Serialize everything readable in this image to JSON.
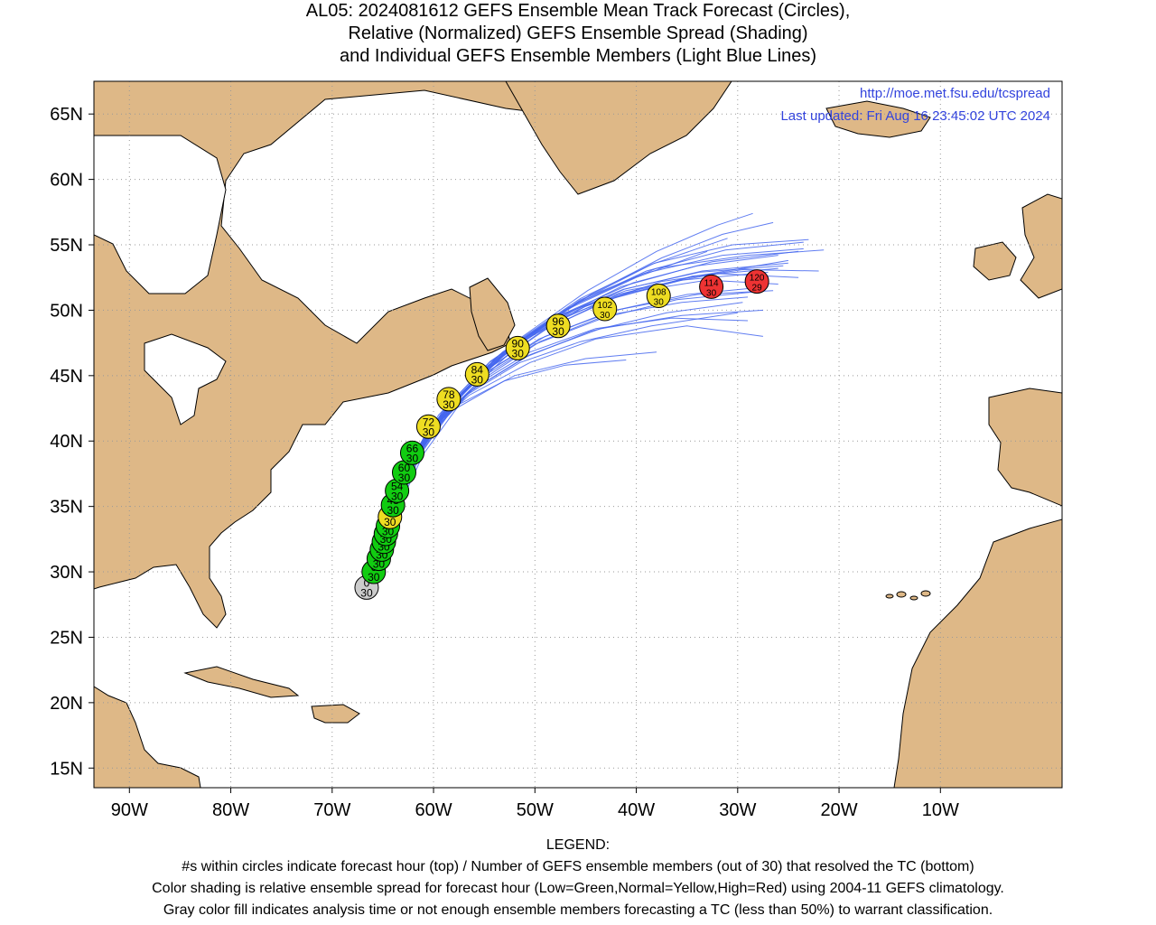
{
  "title": {
    "line1": "AL05: 2024081612 GEFS Ensemble Mean Track Forecast (Circles),",
    "line2": "Relative (Normalized) GEFS Ensemble Spread (Shading)",
    "line3": "and Individual GEFS Ensemble Members (Light Blue Lines)"
  },
  "header": {
    "url": "http://moe.met.fsu.edu/tcspread",
    "updated": "Last updated: Fri Aug 16 23:45:02 UTC 2024"
  },
  "map": {
    "lon_range": [
      -93.5,
      2.0
    ],
    "lat_range": [
      13.5,
      67.5
    ],
    "x_ticks": [
      {
        "lon": -90,
        "label": "90W"
      },
      {
        "lon": -80,
        "label": "80W"
      },
      {
        "lon": -70,
        "label": "70W"
      },
      {
        "lon": -60,
        "label": "60W"
      },
      {
        "lon": -50,
        "label": "50W"
      },
      {
        "lon": -40,
        "label": "40W"
      },
      {
        "lon": -30,
        "label": "30W"
      },
      {
        "lon": -20,
        "label": "20W"
      },
      {
        "lon": -10,
        "label": "10W"
      }
    ],
    "y_ticks": [
      {
        "lat": 15,
        "label": "15N"
      },
      {
        "lat": 20,
        "label": "20N"
      },
      {
        "lat": 25,
        "label": "25N"
      },
      {
        "lat": 30,
        "label": "30N"
      },
      {
        "lat": 35,
        "label": "35N"
      },
      {
        "lat": 40,
        "label": "40N"
      },
      {
        "lat": 45,
        "label": "45N"
      },
      {
        "lat": 50,
        "label": "50N"
      },
      {
        "lat": 55,
        "label": "55N"
      },
      {
        "lat": 60,
        "label": "60N"
      },
      {
        "lat": 65,
        "label": "65N"
      }
    ],
    "colors": {
      "land": "#deb887",
      "ocean": "#ffffff",
      "member_line": "#4466ee",
      "low": "#11cc11",
      "normal": "#eedd22",
      "high": "#ee3333",
      "analysis": "#cccccc"
    },
    "track_points": [
      {
        "hour": "0",
        "members": "30",
        "lon": -66.6,
        "lat": 28.8,
        "spread": "analysis"
      },
      {
        "hour": "6",
        "members": "30",
        "lon": -65.9,
        "lat": 30.0,
        "spread": "low"
      },
      {
        "hour": "12",
        "members": "30",
        "lon": -65.4,
        "lat": 31.0,
        "spread": "low"
      },
      {
        "hour": "18",
        "members": "30",
        "lon": -65.1,
        "lat": 31.7,
        "spread": "low"
      },
      {
        "hour": "24",
        "members": "30",
        "lon": -64.9,
        "lat": 32.3,
        "spread": "low"
      },
      {
        "hour": "30",
        "members": "30",
        "lon": -64.7,
        "lat": 32.9,
        "spread": "low"
      },
      {
        "hour": "36",
        "members": "30",
        "lon": -64.5,
        "lat": 33.5,
        "spread": "low"
      },
      {
        "hour": "42",
        "members": "30",
        "lon": -64.3,
        "lat": 34.2,
        "spread": "normal"
      },
      {
        "hour": "48",
        "members": "30",
        "lon": -64.0,
        "lat": 35.1,
        "spread": "low"
      },
      {
        "hour": "54",
        "members": "30",
        "lon": -63.6,
        "lat": 36.2,
        "spread": "low"
      },
      {
        "hour": "60",
        "members": "30",
        "lon": -62.9,
        "lat": 37.6,
        "spread": "low"
      },
      {
        "hour": "66",
        "members": "30",
        "lon": -62.1,
        "lat": 39.1,
        "spread": "low"
      },
      {
        "hour": "72",
        "members": "30",
        "lon": -60.5,
        "lat": 41.1,
        "spread": "normal"
      },
      {
        "hour": "78",
        "members": "30",
        "lon": -58.5,
        "lat": 43.2,
        "spread": "normal"
      },
      {
        "hour": "84",
        "members": "30",
        "lon": -55.7,
        "lat": 45.1,
        "spread": "normal"
      },
      {
        "hour": "90",
        "members": "30",
        "lon": -51.7,
        "lat": 47.1,
        "spread": "normal"
      },
      {
        "hour": "96",
        "members": "30",
        "lon": -47.7,
        "lat": 48.8,
        "spread": "normal"
      },
      {
        "hour": "102",
        "members": "30",
        "lon": -43.1,
        "lat": 50.1,
        "spread": "normal"
      },
      {
        "hour": "108",
        "members": "30",
        "lon": -37.8,
        "lat": 51.1,
        "spread": "normal"
      },
      {
        "hour": "114",
        "members": "30",
        "lon": -32.6,
        "lat": 51.8,
        "spread": "high"
      },
      {
        "hour": "120",
        "members": "29",
        "lon": -28.1,
        "lat": 52.2,
        "spread": "high"
      }
    ],
    "member_tracks": [
      [
        [
          -66.6,
          28.8
        ],
        [
          -64.5,
          33.5
        ],
        [
          -62.5,
          38.0
        ],
        [
          -59.5,
          42.0
        ],
        [
          -54.5,
          46.0
        ],
        [
          -48.0,
          49.5
        ],
        [
          -41.0,
          51.5
        ],
        [
          -32.0,
          52.8
        ],
        [
          -24.0,
          52.5
        ]
      ],
      [
        [
          -66.6,
          28.8
        ],
        [
          -64.2,
          33.8
        ],
        [
          -61.8,
          38.6
        ],
        [
          -58.0,
          43.0
        ],
        [
          -52.5,
          47.0
        ],
        [
          -45.5,
          50.8
        ],
        [
          -38.0,
          53.2
        ],
        [
          -29.0,
          54.2
        ],
        [
          -21.5,
          54.6
        ]
      ],
      [
        [
          -66.6,
          28.8
        ],
        [
          -64.8,
          33.0
        ],
        [
          -63.2,
          37.0
        ],
        [
          -60.8,
          40.5
        ],
        [
          -56.5,
          43.5
        ],
        [
          -50.5,
          46.0
        ],
        [
          -44.0,
          47.8
        ],
        [
          -35.0,
          48.8
        ],
        [
          -27.5,
          48.0
        ]
      ],
      [
        [
          -66.6,
          28.8
        ],
        [
          -64.6,
          33.3
        ],
        [
          -62.6,
          37.5
        ],
        [
          -59.6,
          41.3
        ],
        [
          -55.0,
          44.8
        ],
        [
          -49.5,
          47.6
        ],
        [
          -43.0,
          49.6
        ],
        [
          -35.5,
          50.6
        ],
        [
          -29.0,
          51.0
        ]
      ],
      [
        [
          -66.6,
          28.8
        ],
        [
          -64.0,
          34.0
        ],
        [
          -61.0,
          39.0
        ],
        [
          -56.5,
          43.8
        ],
        [
          -51.0,
          47.8
        ],
        [
          -44.5,
          51.2
        ],
        [
          -37.5,
          54.0
        ],
        [
          -31.5,
          55.8
        ],
        [
          -26.5,
          56.7
        ]
      ],
      [
        [
          -66.6,
          28.8
        ],
        [
          -64.3,
          33.7
        ],
        [
          -62.0,
          38.4
        ],
        [
          -58.5,
          42.6
        ],
        [
          -53.5,
          46.6
        ],
        [
          -47.0,
          50.0
        ],
        [
          -40.0,
          52.5
        ],
        [
          -33.0,
          54.5
        ]
      ],
      [
        [
          -66.6,
          28.8
        ],
        [
          -64.9,
          32.8
        ],
        [
          -63.5,
          36.5
        ],
        [
          -61.3,
          39.8
        ],
        [
          -57.5,
          42.8
        ],
        [
          -52.0,
          45.0
        ],
        [
          -45.0,
          46.3
        ],
        [
          -38.0,
          46.8
        ]
      ],
      [
        [
          -66.6,
          28.8
        ],
        [
          -64.4,
          33.6
        ],
        [
          -62.3,
          38.2
        ],
        [
          -59.0,
          42.3
        ],
        [
          -54.0,
          46.2
        ],
        [
          -47.5,
          49.4
        ],
        [
          -40.5,
          51.4
        ],
        [
          -33.0,
          52.3
        ],
        [
          -26.0,
          52.0
        ]
      ],
      [
        [
          -66.6,
          28.8
        ],
        [
          -64.1,
          33.9
        ],
        [
          -61.5,
          38.8
        ],
        [
          -57.5,
          43.3
        ],
        [
          -52.0,
          47.3
        ],
        [
          -45.0,
          50.3
        ],
        [
          -37.5,
          52.2
        ],
        [
          -29.5,
          53.1
        ],
        [
          -22.0,
          53.0
        ]
      ],
      [
        [
          -66.6,
          28.8
        ],
        [
          -64.7,
          33.2
        ],
        [
          -62.9,
          37.3
        ],
        [
          -60.2,
          41.0
        ],
        [
          -56.0,
          44.2
        ],
        [
          -50.5,
          46.8
        ],
        [
          -44.0,
          48.6
        ],
        [
          -36.5,
          49.4
        ],
        [
          -29.0,
          49.2
        ]
      ],
      [
        [
          -66.6,
          28.8
        ],
        [
          -64.5,
          33.4
        ],
        [
          -62.4,
          37.9
        ],
        [
          -59.2,
          41.9
        ],
        [
          -54.5,
          45.7
        ],
        [
          -48.5,
          49.1
        ],
        [
          -41.5,
          51.8
        ],
        [
          -34.0,
          53.4
        ],
        [
          -26.0,
          54.2
        ]
      ],
      [
        [
          -66.6,
          28.8
        ],
        [
          -64.2,
          33.8
        ],
        [
          -61.7,
          38.7
        ],
        [
          -57.8,
          43.1
        ],
        [
          -52.3,
          47.1
        ],
        [
          -45.8,
          50.6
        ],
        [
          -38.5,
          53.5
        ],
        [
          -31.0,
          55.5
        ]
      ],
      [
        [
          -66.6,
          28.8
        ],
        [
          -64.6,
          33.3
        ],
        [
          -62.7,
          37.6
        ],
        [
          -59.8,
          41.5
        ],
        [
          -55.3,
          45.0
        ],
        [
          -49.0,
          48.0
        ],
        [
          -42.0,
          50.0
        ],
        [
          -34.0,
          51.2
        ],
        [
          -26.5,
          51.5
        ]
      ],
      [
        [
          -66.6,
          28.8
        ],
        [
          -64.8,
          33.1
        ],
        [
          -63.0,
          37.2
        ],
        [
          -60.5,
          40.8
        ],
        [
          -56.2,
          43.9
        ],
        [
          -50.5,
          46.6
        ],
        [
          -43.5,
          48.6
        ],
        [
          -35.5,
          49.6
        ],
        [
          -27.5,
          50.0
        ]
      ],
      [
        [
          -66.6,
          28.8
        ],
        [
          -64.3,
          33.6
        ],
        [
          -62.1,
          38.3
        ],
        [
          -58.8,
          42.4
        ],
        [
          -53.8,
          46.4
        ],
        [
          -47.3,
          49.7
        ],
        [
          -40.3,
          52.1
        ],
        [
          -32.5,
          53.7
        ],
        [
          -24.0,
          54.5
        ]
      ],
      [
        [
          -66.6,
          28.8
        ],
        [
          -64.4,
          33.5
        ],
        [
          -62.2,
          38.1
        ],
        [
          -58.9,
          42.2
        ],
        [
          -54.2,
          46.0
        ],
        [
          -48.2,
          49.2
        ],
        [
          -41.2,
          51.6
        ],
        [
          -33.5,
          53.0
        ],
        [
          -25.0,
          53.6
        ]
      ],
      [
        [
          -66.6,
          28.8
        ],
        [
          -64.0,
          34.1
        ],
        [
          -61.2,
          39.1
        ],
        [
          -56.8,
          43.9
        ],
        [
          -51.2,
          48.0
        ],
        [
          -44.8,
          51.5
        ],
        [
          -38.0,
          54.5
        ],
        [
          -32.0,
          56.5
        ],
        [
          -28.5,
          57.4
        ]
      ],
      [
        [
          -66.6,
          28.8
        ],
        [
          -64.9,
          32.9
        ],
        [
          -63.4,
          36.7
        ],
        [
          -61.0,
          40.2
        ],
        [
          -57.0,
          43.4
        ],
        [
          -51.5,
          46.0
        ],
        [
          -45.5,
          47.6
        ],
        [
          -38.5,
          48.8
        ],
        [
          -30.0,
          49.8
        ]
      ],
      [
        [
          -66.6,
          28.8
        ],
        [
          -64.5,
          33.5
        ],
        [
          -62.5,
          37.9
        ],
        [
          -59.4,
          41.8
        ],
        [
          -54.8,
          45.4
        ],
        [
          -48.8,
          48.6
        ],
        [
          -42.0,
          51.0
        ],
        [
          -34.5,
          52.6
        ],
        [
          -26.0,
          53.2
        ]
      ],
      [
        [
          -66.6,
          28.8
        ],
        [
          -64.6,
          33.4
        ],
        [
          -62.6,
          37.8
        ],
        [
          -59.7,
          41.6
        ],
        [
          -55.2,
          45.2
        ],
        [
          -49.3,
          48.4
        ],
        [
          -42.8,
          50.8
        ],
        [
          -35.5,
          52.3
        ],
        [
          -27.0,
          52.9
        ]
      ],
      [
        [
          -66.6,
          28.8
        ],
        [
          -64.1,
          33.9
        ],
        [
          -61.6,
          38.9
        ],
        [
          -57.6,
          43.4
        ],
        [
          -52.2,
          47.4
        ],
        [
          -45.5,
          50.9
        ],
        [
          -38.2,
          53.6
        ],
        [
          -30.5,
          55.0
        ],
        [
          -23.0,
          55.4
        ]
      ],
      [
        [
          -66.6,
          28.8
        ],
        [
          -64.7,
          33.2
        ],
        [
          -62.8,
          37.4
        ],
        [
          -60.0,
          41.2
        ],
        [
          -55.8,
          44.6
        ],
        [
          -50.0,
          47.4
        ],
        [
          -43.3,
          49.4
        ],
        [
          -36.0,
          50.8
        ],
        [
          -28.5,
          51.4
        ]
      ],
      [
        [
          -66.6,
          28.8
        ],
        [
          -64.3,
          33.7
        ],
        [
          -61.9,
          38.5
        ],
        [
          -58.3,
          42.8
        ],
        [
          -53.2,
          46.8
        ],
        [
          -46.7,
          50.2
        ],
        [
          -39.3,
          52.8
        ],
        [
          -31.5,
          54.2
        ],
        [
          -23.5,
          54.7
        ]
      ],
      [
        [
          -66.6,
          28.8
        ],
        [
          -64.4,
          33.6
        ],
        [
          -62.3,
          38.2
        ],
        [
          -59.1,
          42.3
        ],
        [
          -54.4,
          46.1
        ],
        [
          -48.3,
          49.3
        ],
        [
          -41.3,
          51.6
        ],
        [
          -33.8,
          52.9
        ],
        [
          -25.5,
          53.4
        ]
      ],
      [
        [
          -66.6,
          28.8
        ],
        [
          -64.8,
          33.0
        ],
        [
          -63.1,
          37.1
        ],
        [
          -60.6,
          40.6
        ],
        [
          -56.6,
          43.7
        ],
        [
          -51.0,
          46.4
        ],
        [
          -44.5,
          48.4
        ],
        [
          -37.0,
          49.8
        ],
        [
          -29.5,
          50.6
        ]
      ],
      [
        [
          -66.6,
          28.8
        ],
        [
          -64.5,
          33.4
        ],
        [
          -62.4,
          37.9
        ],
        [
          -59.3,
          42.0
        ],
        [
          -54.6,
          45.8
        ],
        [
          -48.6,
          48.9
        ],
        [
          -41.8,
          51.2
        ],
        [
          -34.2,
          52.6
        ],
        [
          -25.0,
          53.8
        ]
      ],
      [
        [
          -66.6,
          28.8
        ],
        [
          -64.2,
          33.8
        ],
        [
          -61.8,
          38.6
        ],
        [
          -58.1,
          42.9
        ],
        [
          -52.8,
          46.9
        ],
        [
          -46.2,
          50.4
        ],
        [
          -39.0,
          53.0
        ],
        [
          -31.2,
          54.6
        ],
        [
          -23.5,
          55.2
        ]
      ],
      [
        [
          -66.6,
          28.8
        ],
        [
          -64.6,
          33.3
        ],
        [
          -62.7,
          37.5
        ],
        [
          -59.9,
          41.4
        ],
        [
          -55.5,
          44.9
        ],
        [
          -49.6,
          47.8
        ],
        [
          -42.6,
          49.9
        ],
        [
          -35.0,
          51.2
        ],
        [
          -27.0,
          51.8
        ]
      ],
      [
        [
          -66.6,
          28.8
        ],
        [
          -64.9,
          32.8
        ],
        [
          -63.6,
          36.4
        ],
        [
          -61.5,
          39.6
        ],
        [
          -58.0,
          42.4
        ],
        [
          -53.0,
          44.6
        ],
        [
          -47.0,
          45.8
        ],
        [
          -41.0,
          46.2
        ]
      ]
    ]
  },
  "legend": {
    "heading": "LEGEND:",
    "line1": "#s within circles indicate forecast hour (top) / Number of GEFS ensemble members (out of 30) that resolved the TC (bottom)",
    "line2": "Color shading is relative ensemble spread for forecast hour (Low=Green,Normal=Yellow,High=Red) using 2004-11 GEFS climatology.",
    "line3": "Gray color fill indicates analysis time or not enough ensemble members forecasting a TC (less than 50%) to warrant classification."
  }
}
